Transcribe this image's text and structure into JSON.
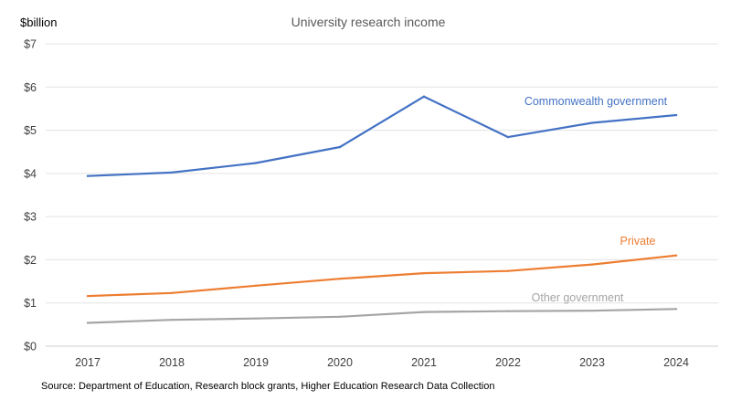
{
  "chart_data": {
    "type": "line",
    "title": "University research income",
    "y_unit_label": "$billion",
    "x": [
      "2017",
      "2018",
      "2019",
      "2020",
      "2021",
      "2022",
      "2023",
      "2024"
    ],
    "ylim": [
      0,
      7
    ],
    "y_ticks": [
      0,
      1,
      2,
      3,
      4,
      5,
      6,
      7
    ],
    "y_tick_labels": [
      "$0",
      "$1",
      "$2",
      "$3",
      "$4",
      "$5",
      "$6",
      "$7"
    ],
    "grid": true,
    "legend": "none (series labelled directly on chart)",
    "series": [
      {
        "name": "Commonwealth government",
        "color": "#4472c4",
        "values": [
          3.94,
          4.02,
          4.24,
          4.61,
          5.78,
          4.84,
          5.17,
          5.35
        ]
      },
      {
        "name": "Private",
        "color": "#ed7d31",
        "values": [
          1.16,
          1.23,
          1.4,
          1.56,
          1.69,
          1.74,
          1.89,
          2.1
        ]
      },
      {
        "name": "Other government",
        "color": "#a5a5a5",
        "values": [
          0.54,
          0.61,
          0.64,
          0.68,
          0.79,
          0.81,
          0.82,
          0.86
        ]
      }
    ],
    "source": "Source: Department of Education, Research block grants, Higher Education Research Data Collection"
  }
}
